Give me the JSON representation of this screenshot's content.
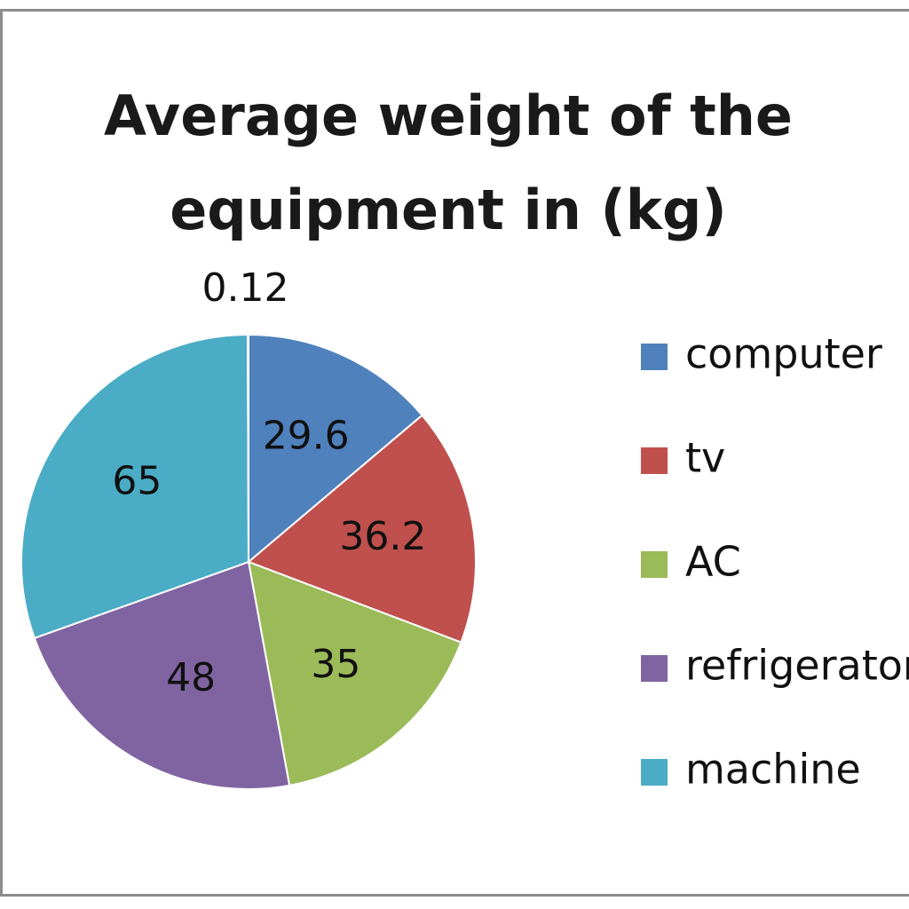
{
  "chart_data": {
    "type": "pie",
    "title_lines": [
      "Average weight of the",
      "equipment in (kg)"
    ],
    "slices": [
      {
        "label": "computer",
        "value": 29.6,
        "data_label": "29.6",
        "color": "#4f81bd"
      },
      {
        "label": "tv",
        "value": 36.2,
        "data_label": "36.2",
        "color": "#c0504d"
      },
      {
        "label": "AC",
        "value": 35,
        "data_label": "35",
        "color": "#9bbb59"
      },
      {
        "label": "refrigerator",
        "value": 48,
        "data_label": "48",
        "color": "#8064a2"
      },
      {
        "label": "machine",
        "value": 65,
        "data_label": "65",
        "color": "#4bacc6"
      },
      {
        "label": "",
        "value": 0.12,
        "data_label": "0.12",
        "color": "#f79646"
      }
    ],
    "legend": [
      "computer",
      "tv",
      "AC",
      "refrigerator",
      "machine"
    ],
    "legend_placement": "right"
  }
}
